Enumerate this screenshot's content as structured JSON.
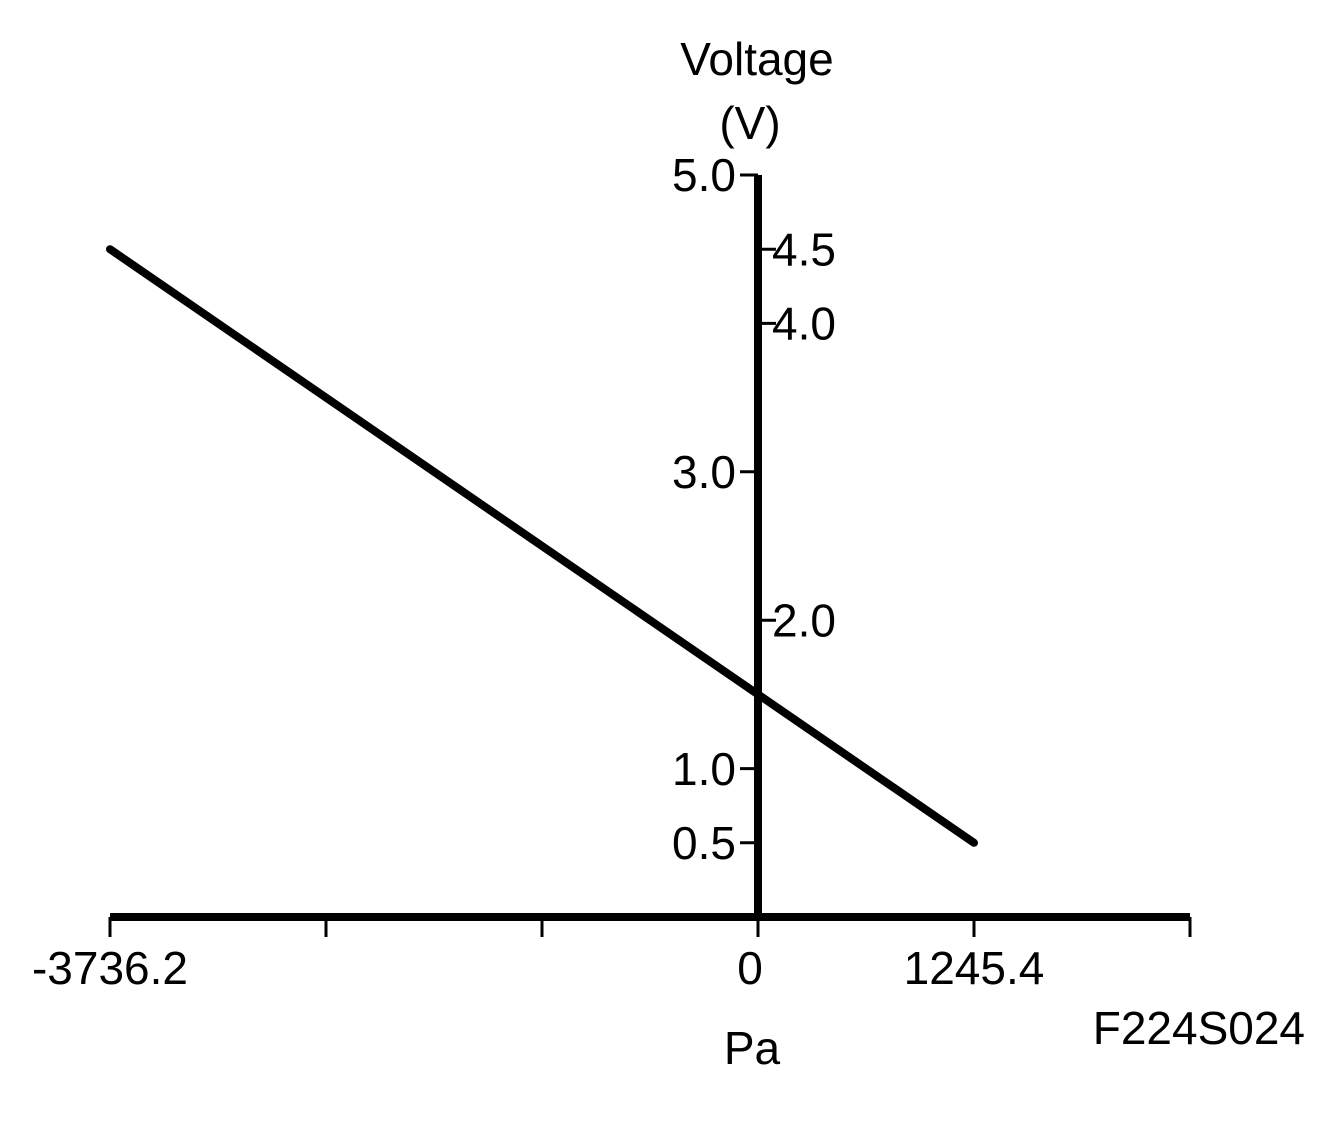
{
  "chart_data": {
    "type": "line",
    "y_label": [
      "Voltage",
      "(V)"
    ],
    "x_label": "Pa",
    "annotation": "F224S024",
    "x": [
      -3736.2,
      1245.4
    ],
    "series": [
      {
        "color": "#000000",
        "values": [
          4.5,
          0.5
        ]
      }
    ],
    "xlim": [
      -3736.2,
      2490.8
    ],
    "xticks": [
      {
        "value": -3736.2,
        "label": "-3736.2"
      },
      0,
      {
        "value": 1245.4,
        "label": "1245.4"
      }
    ],
    "xticks_unlabeled": [
      -2490.8,
      -1245.4,
      2490.8
    ],
    "ylim": [
      0,
      5
    ],
    "yticks": [
      {
        "value": 5,
        "label": "5.0"
      },
      {
        "value": 3,
        "label": "3.0"
      },
      {
        "value": 1,
        "label": "1.0"
      },
      {
        "value": 0.5,
        "label": "0.5"
      }
    ],
    "yticks_right": [
      {
        "value": 4.5,
        "label": "4.5"
      },
      {
        "value": 4,
        "label": "4.0"
      },
      {
        "value": 2,
        "label": "2.0"
      }
    ],
    "grid": false
  }
}
